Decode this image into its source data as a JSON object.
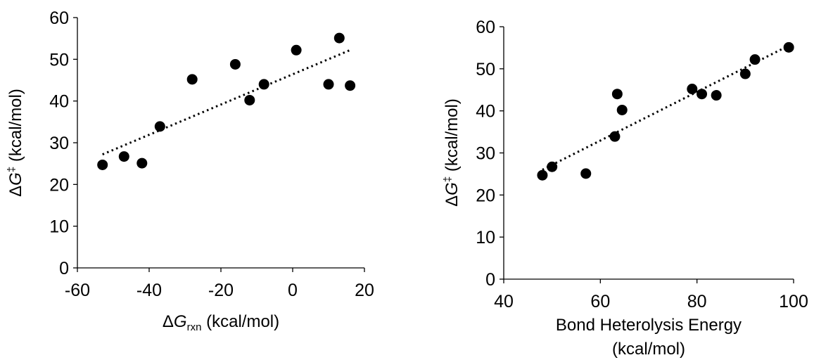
{
  "chart_data": [
    {
      "type": "scatter",
      "xlabel": {
        "symbol": "ΔG",
        "subscript": "rxn",
        "unit": " (kcal/mol)"
      },
      "ylabel": {
        "symbol": "ΔG",
        "superscript": "‡",
        "unit": " (kcal/mol)"
      },
      "xlim": [
        -60,
        20
      ],
      "ylim": [
        0,
        60
      ],
      "x_ticks": [
        -60,
        -40,
        -20,
        0,
        20
      ],
      "y_ticks": [
        0,
        10,
        20,
        30,
        40,
        50,
        60
      ],
      "grid": false,
      "legend": "none",
      "marker_color": "#000000",
      "series": [
        {
          "points": [
            {
              "x": -53,
              "y": 24.7
            },
            {
              "x": -47,
              "y": 26.7
            },
            {
              "x": -42,
              "y": 25.1
            },
            {
              "x": -37,
              "y": 33.9
            },
            {
              "x": -28,
              "y": 45.2
            },
            {
              "x": -16,
              "y": 48.8
            },
            {
              "x": -12,
              "y": 40.2
            },
            {
              "x": -8,
              "y": 44.0
            },
            {
              "x": 1,
              "y": 52.2
            },
            {
              "x": 10,
              "y": 44.0
            },
            {
              "x": 13,
              "y": 55.1
            },
            {
              "x": 16,
              "y": 43.7
            }
          ]
        }
      ],
      "trendline": {
        "style": "dotted",
        "x": [
          -53,
          16
        ],
        "y": [
          27.2,
          52.2
        ]
      }
    },
    {
      "type": "scatter",
      "xlabel": {
        "line1": "Bond Heterolysis Energy",
        "line2": "(kcal/mol)"
      },
      "ylabel": {
        "symbol": "ΔG",
        "superscript": "‡",
        "unit": " (kcal/mol)"
      },
      "xlim": [
        40,
        100
      ],
      "ylim": [
        0,
        60
      ],
      "x_ticks": [
        40,
        60,
        80,
        100
      ],
      "y_ticks": [
        0,
        10,
        20,
        30,
        40,
        50,
        60
      ],
      "grid": false,
      "legend": "none",
      "marker_color": "#000000",
      "series": [
        {
          "points": [
            {
              "x": 48,
              "y": 24.7
            },
            {
              "x": 50,
              "y": 26.7
            },
            {
              "x": 57,
              "y": 25.1
            },
            {
              "x": 63,
              "y": 33.9
            },
            {
              "x": 63.5,
              "y": 44.0
            },
            {
              "x": 64.5,
              "y": 40.2
            },
            {
              "x": 79,
              "y": 45.2
            },
            {
              "x": 81,
              "y": 44.0
            },
            {
              "x": 84,
              "y": 43.7
            },
            {
              "x": 90,
              "y": 48.8
            },
            {
              "x": 92,
              "y": 52.2
            },
            {
              "x": 99,
              "y": 55.1
            }
          ]
        }
      ],
      "trendline": {
        "style": "dotted",
        "x": [
          48,
          99
        ],
        "y": [
          26.0,
          55.5
        ]
      }
    }
  ]
}
